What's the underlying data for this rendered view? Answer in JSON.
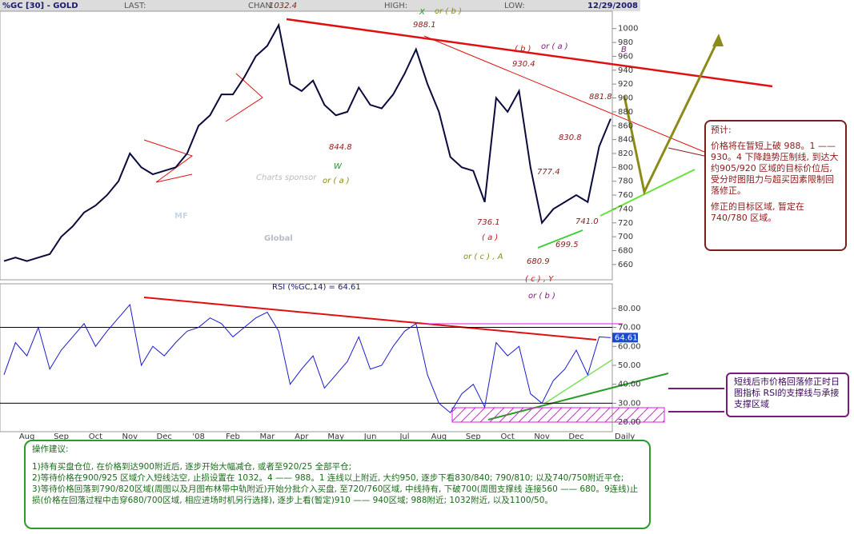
{
  "header": {
    "symbol": "%GC [30] - GOLD",
    "last": "LAST:",
    "change": "CHAN",
    "high": "HIGH:",
    "low": "LOW:",
    "date": "12/29/2008"
  },
  "chart_data": [
    {
      "type": "line",
      "color": "#0a0a3c",
      "values": [
        665,
        670,
        665,
        670,
        675,
        700,
        715,
        735,
        745,
        760,
        780,
        820,
        800,
        790,
        795,
        800,
        820,
        860,
        875,
        905,
        905,
        930,
        960,
        975,
        1005,
        920,
        910,
        925,
        890,
        875,
        880,
        915,
        890,
        885,
        905,
        935,
        970,
        920,
        880,
        815,
        800,
        795,
        750,
        900,
        880,
        910,
        800,
        720,
        740,
        750,
        760,
        750,
        830,
        870
      ],
      "ylim": [
        638,
        1025
      ],
      "yticks": [
        660,
        680,
        700,
        720,
        740,
        760,
        780,
        800,
        820,
        840,
        860,
        880,
        900,
        920,
        940,
        960,
        980,
        1000
      ]
    },
    {
      "type": "line",
      "color": "#1a1ad0",
      "title": "RSI (%GC,14) = 64.61",
      "x_unit": "Daily",
      "categories": [
        null,
        null,
        "Aug",
        null,
        null,
        "Sep",
        null,
        null,
        "Oct",
        null,
        null,
        "Nov",
        null,
        null,
        "Dec",
        null,
        null,
        "'08",
        null,
        null,
        "Feb",
        null,
        null,
        "Mar",
        null,
        null,
        "Apr",
        null,
        null,
        "May",
        null,
        null,
        "Jun",
        null,
        null,
        "Jul",
        null,
        null,
        "Aug",
        null,
        null,
        "Sep",
        null,
        null,
        "Oct",
        null,
        null,
        "Nov",
        null,
        null,
        "Dec",
        null,
        null,
        null
      ],
      "values": [
        45,
        62,
        55,
        70,
        48,
        58,
        65,
        72,
        60,
        68,
        75,
        82,
        50,
        60,
        55,
        62,
        68,
        70,
        75,
        72,
        65,
        70,
        75,
        78,
        68,
        40,
        48,
        55,
        38,
        45,
        52,
        65,
        48,
        50,
        60,
        68,
        72,
        45,
        30,
        25,
        35,
        40,
        28,
        62,
        55,
        60,
        35,
        30,
        42,
        48,
        58,
        45,
        65,
        64.61
      ],
      "ylim": [
        15,
        93
      ],
      "levels": [
        70,
        30
      ],
      "yticks": [
        {
          "value": 20,
          "label": "20.00"
        },
        {
          "value": 30,
          "label": "30.00"
        },
        {
          "value": 40,
          "label": "40.00"
        },
        {
          "value": 50,
          "label": "50.00"
        },
        {
          "value": 60,
          "label": "60.00"
        },
        {
          "value": 70,
          "label": "70.00"
        },
        {
          "value": 80,
          "label": "80.00"
        }
      ]
    }
  ],
  "annotations": [
    {
      "text": "1032.4",
      "color": "#8b1a1a"
    },
    {
      "text": "988.1",
      "color": "#8b1a1a"
    },
    {
      "text": "X",
      "color": "#2e8b2e"
    },
    {
      "text": "or ( b )",
      "color": "#8b8b1a"
    },
    {
      "text": "( b )",
      "color": "#d01010"
    },
    {
      "text": "or ( a )",
      "color": "#7a1a7a"
    },
    {
      "text": "B",
      "color": "#7a1a7a"
    },
    {
      "text": "930.4",
      "color": "#8b1a1a"
    },
    {
      "text": "881.8",
      "color": "#8b1a1a"
    },
    {
      "text": "844.8",
      "color": "#8b1a1a"
    },
    {
      "text": "W",
      "color": "#2e8b2e"
    },
    {
      "text": "or ( a )",
      "color": "#8b8b1a"
    },
    {
      "text": "830.8",
      "color": "#8b1a1a"
    },
    {
      "text": "777.4",
      "color": "#8b1a1a"
    },
    {
      "text": "736.1",
      "color": "#8b1a1a"
    },
    {
      "text": "( a )",
      "color": "#d01010"
    },
    {
      "text": "741.0",
      "color": "#8b1a1a"
    },
    {
      "text": "699.5",
      "color": "#8b1a1a"
    },
    {
      "text": "or ( c ) , A",
      "color": "#8b8b1a"
    },
    {
      "text": "680.9",
      "color": "#8b1a1a"
    },
    {
      "text": "( c ) , Y",
      "color": "#d01010"
    },
    {
      "text": "or ( b )",
      "color": "#7a1a7a"
    }
  ],
  "watermark": {
    "sponsor": "Charts sponsor",
    "mf": "MF",
    "global": "Global"
  },
  "forecast_box": {
    "title": "预计:",
    "body": "价格将在暂短上破 988。1 —— 930。4 下降趋势压制线, 到达大约905/920 区域的目标价位后, 受分时图阻力与超买因素限制回落修正。",
    "target": "修正的目标区域, 暂定在740/780 区域。"
  },
  "rsi_note": "短线后市价格回落修正时日图指标 RSI的支撑线与承接支撑区域",
  "advice": {
    "title": "操作建议:",
    "items": [
      "1)持有买盘仓位, 在价格到达900附近后, 逐步开始大幅减仓, 或者至920/25 全部平仓;",
      "2)等待价格在900/925 区域介入短线沽空, 止损设置在 1032。4 —— 988。1 连线以上附近, 大约950, 逐步下看830/840; 790/810; 以及740/750附近平仓;",
      "3)等待价格回落到790/820区域(周图以及月图布林带中轨附近)开始分批介入买盘, 至720/760区域, 中线持有, 下破700(周图支撑线 连接560 —— 680。9连线)止损(价格在回落过程中击穿680/700区域, 相应进场时机另行选择), 逐步上看(暂定)910 —— 940区域; 988附近; 1032附近, 以及1100/50。"
    ]
  }
}
